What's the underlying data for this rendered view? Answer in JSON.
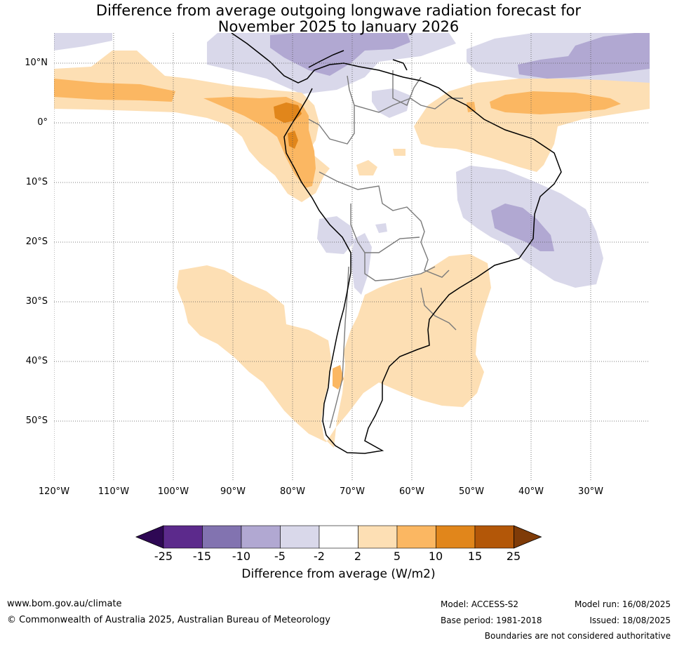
{
  "title": {
    "line1": "Difference from average outgoing longwave radiation forecast for",
    "line2": "November 2025 to January 2026"
  },
  "map": {
    "lat_labels": [
      "10°N",
      "0°",
      "10°S",
      "20°S",
      "30°S",
      "40°S",
      "50°S"
    ],
    "lon_labels": [
      "120°W",
      "110°W",
      "100°W",
      "90°W",
      "80°W",
      "70°W",
      "60°W",
      "50°W",
      "40°W",
      "30°W"
    ],
    "extent": {
      "lon": [
        -120,
        -20
      ],
      "lat": [
        -60,
        15
      ]
    },
    "grid": true
  },
  "colorbar": {
    "ticks": [
      "-25",
      "-15",
      "-10",
      "-5",
      "-2",
      "2",
      "5",
      "10",
      "15",
      "25"
    ],
    "colors": [
      "#5c2a8c",
      "#8273b0",
      "#b1a8d2",
      "#d9d8ea",
      "#ffffff",
      "#fddfb4",
      "#fbb762",
      "#e1861b",
      "#b35708"
    ],
    "under_color": "#2e0854",
    "over_color": "#7f3b08",
    "label": "Difference from average (W/m2)"
  },
  "footer": {
    "website": "www.bom.gov.au/climate",
    "copyright": "© Commonwealth of Australia 2025, Australian Bureau of Meteorology",
    "model": "Model: ACCESS-S2",
    "base_period": "Base period: 1981-2018",
    "model_run": "Model run: 16/08/2025",
    "issued": "Issued: 18/08/2025",
    "disclaimer": "Boundaries are not considered authoritative"
  }
}
